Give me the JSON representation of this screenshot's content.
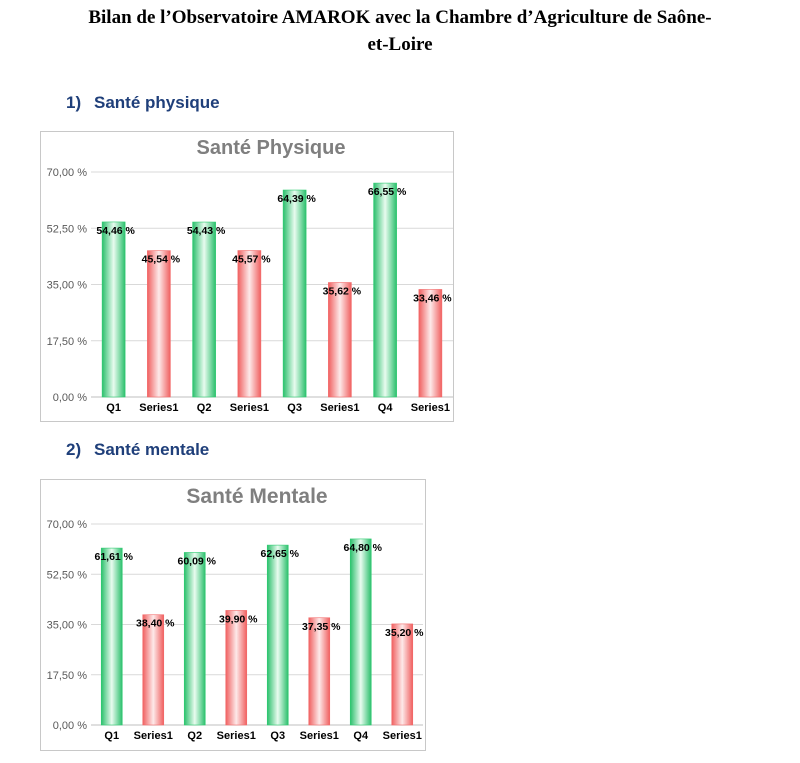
{
  "document": {
    "title_line1": "Bilan de l’Observatoire AMAROK avec la Chambre d’Agriculture de Saône-",
    "title_line2": "et-Loire"
  },
  "sections": [
    {
      "number": "1)",
      "heading": "Santé physique"
    },
    {
      "number": "2)",
      "heading": "Santé mentale"
    }
  ],
  "colors": {
    "green": "#2ecc71",
    "red": "#f26b6b",
    "heading": "#1f3f7a",
    "chart_title": "#7f7f7f"
  },
  "chart_data": [
    {
      "type": "bar",
      "title": "Santé Physique",
      "categories": [
        "Q1",
        "Series1",
        "Q2",
        "Series1",
        "Q3",
        "Series1",
        "Q4",
        "Series1"
      ],
      "values": [
        54.46,
        45.54,
        54.43,
        45.57,
        64.39,
        35.62,
        66.55,
        33.46
      ],
      "data_labels": [
        "54,46 %",
        "45,54 %",
        "54,43 %",
        "45,57 %",
        "64,39 %",
        "35,62 %",
        "66,55 %",
        "33,46 %"
      ],
      "bar_colors": [
        "green",
        "red",
        "green",
        "red",
        "green",
        "red",
        "green",
        "red"
      ],
      "yticks": [
        0,
        17.5,
        35,
        52.5,
        70
      ],
      "ytick_labels": [
        "0,00 %",
        "17,50 %",
        "35,00 %",
        "52,50 %",
        "70,00 %"
      ],
      "ylim": [
        0,
        70
      ],
      "grid": true,
      "legend": "none"
    },
    {
      "type": "bar",
      "title": "Santé Mentale",
      "categories": [
        "Q1",
        "Series1",
        "Q2",
        "Series1",
        "Q3",
        "Series1",
        "Q4",
        "Series1"
      ],
      "values": [
        61.61,
        38.4,
        60.09,
        39.9,
        62.65,
        37.35,
        64.8,
        35.2
      ],
      "data_labels": [
        "61,61 %",
        "38,40 %",
        "60,09 %",
        "39,90 %",
        "62,65 %",
        "37,35 %",
        "64,80 %",
        "35,20 %"
      ],
      "bar_colors": [
        "green",
        "red",
        "green",
        "red",
        "green",
        "red",
        "green",
        "red"
      ],
      "yticks": [
        0,
        17.5,
        35,
        52.5,
        70
      ],
      "ytick_labels": [
        "0,00 %",
        "17,50 %",
        "35,00 %",
        "52,50 %",
        "70,00 %"
      ],
      "ylim": [
        0,
        70
      ],
      "grid": true,
      "legend": "none"
    }
  ]
}
